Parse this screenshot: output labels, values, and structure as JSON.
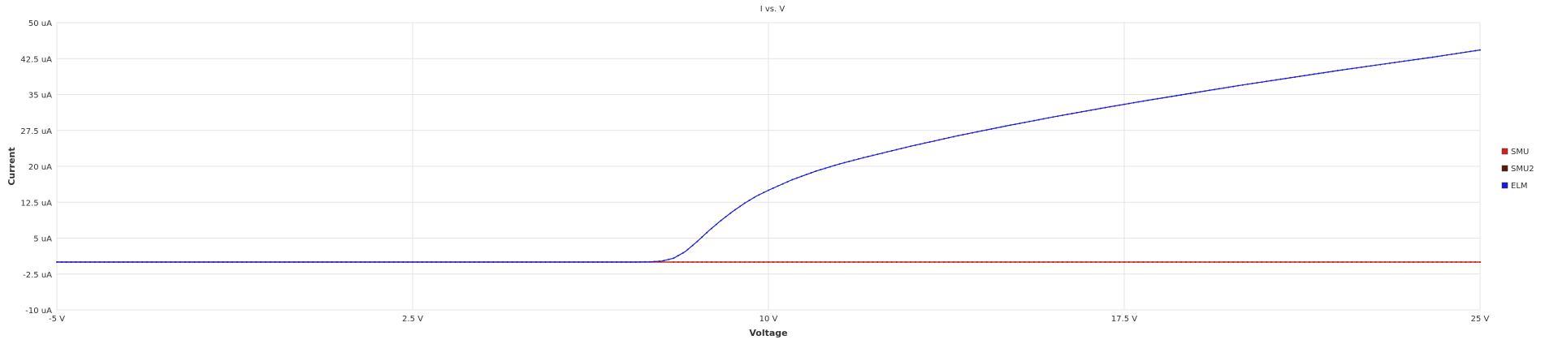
{
  "chart_data": {
    "type": "line",
    "title": "I vs. V",
    "xlabel": "Voltage",
    "ylabel": "Current",
    "xlim": [
      -5,
      25
    ],
    "ylim": [
      -10,
      50
    ],
    "xticks": [
      {
        "value": -5,
        "label": "-5 V"
      },
      {
        "value": 2.5,
        "label": "2.5 V"
      },
      {
        "value": 10,
        "label": "10 V"
      },
      {
        "value": 17.5,
        "label": "17.5 V"
      },
      {
        "value": 25,
        "label": "25 V"
      }
    ],
    "yticks": [
      {
        "value": 50,
        "label": "50 uA"
      },
      {
        "value": 42.5,
        "label": "42.5 uA"
      },
      {
        "value": 35,
        "label": "35 uA"
      },
      {
        "value": 27.5,
        "label": "27.5 uA"
      },
      {
        "value": 20,
        "label": "20 uA"
      },
      {
        "value": 12.5,
        "label": "12.5 uA"
      },
      {
        "value": 5,
        "label": "5 uA"
      },
      {
        "value": -2.5,
        "label": "-2.5 uA"
      },
      {
        "value": -10,
        "label": "-10 uA"
      }
    ],
    "grid": true,
    "legend_position": "right",
    "series": [
      {
        "name": "SMU",
        "color": "#d42020",
        "x": [
          -5,
          0,
          5,
          7.5,
          8,
          10,
          12.5,
          15,
          17.5,
          20,
          22.5,
          25
        ],
        "y": [
          0,
          0,
          0,
          0,
          0,
          0,
          0,
          0,
          0,
          0,
          0,
          0
        ]
      },
      {
        "name": "SMU2",
        "color": "#5a1a0a",
        "x": [
          -5,
          0,
          5,
          7.5,
          8,
          10,
          12.5,
          15,
          17.5,
          20,
          22.5,
          25
        ],
        "y": [
          0,
          0,
          0,
          0,
          0,
          0,
          0,
          0,
          0,
          0,
          0,
          0
        ]
      },
      {
        "name": "ELM",
        "color": "#1a1ad4",
        "x": [
          -5,
          -2.5,
          0,
          2.5,
          5,
          7.25,
          7.5,
          7.75,
          8.0,
          8.25,
          8.5,
          8.75,
          9.0,
          9.25,
          9.5,
          9.75,
          10.0,
          10.5,
          11.0,
          11.5,
          12.0,
          13.0,
          14.0,
          15.0,
          16.0,
          17.0,
          18.0,
          19.0,
          20.0,
          21.0,
          22.0,
          23.0,
          24.0,
          25.0
        ],
        "y": [
          0,
          0,
          0,
          0,
          0,
          0,
          0.05,
          0.2,
          0.8,
          2.2,
          4.3,
          6.6,
          8.7,
          10.6,
          12.3,
          13.8,
          15.0,
          17.2,
          19.0,
          20.5,
          21.8,
          24.2,
          26.4,
          28.4,
          30.3,
          32.1,
          33.8,
          35.4,
          37.0,
          38.5,
          40.0,
          41.4,
          42.8,
          44.3
        ]
      }
    ]
  }
}
